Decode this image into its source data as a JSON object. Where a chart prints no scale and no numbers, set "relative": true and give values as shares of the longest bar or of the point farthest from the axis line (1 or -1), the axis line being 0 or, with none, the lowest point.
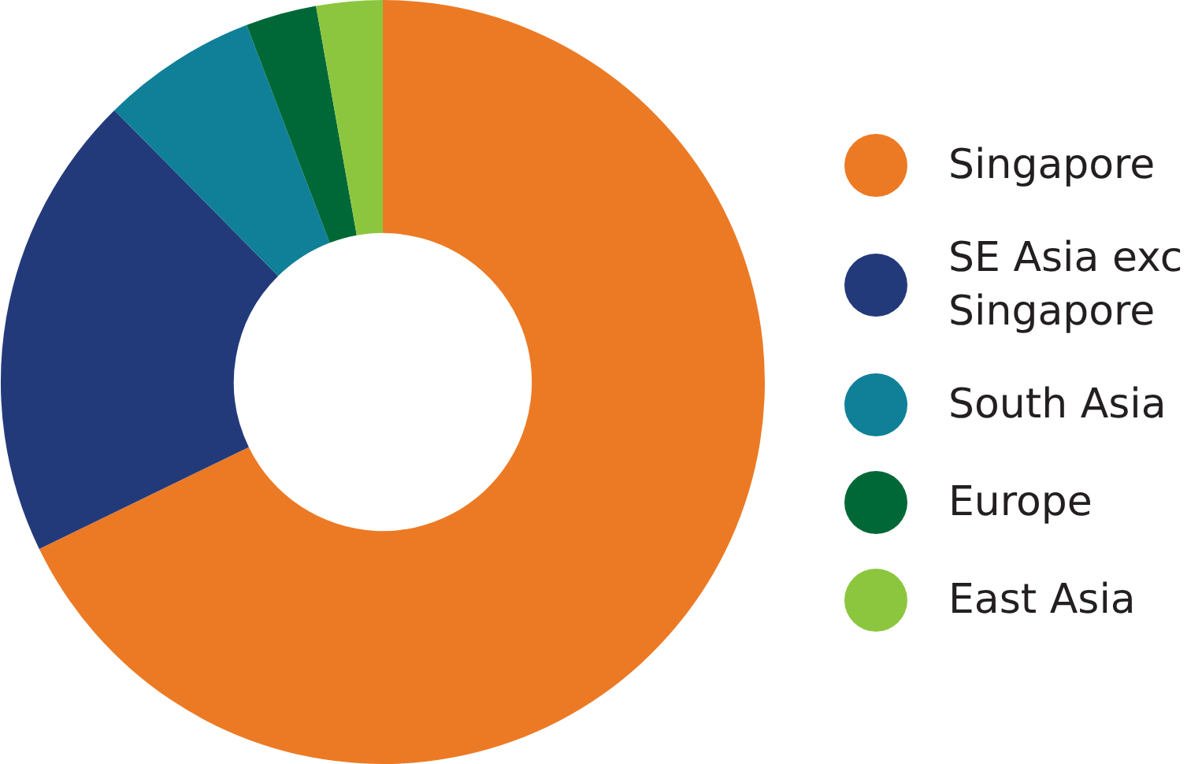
{
  "chart_data": {
    "type": "donut",
    "relative": true,
    "categories": [
      "Singapore",
      "SE Asia exc Singapore",
      "South Asia",
      "Europe",
      "East Asia"
    ],
    "values": [
      67.8,
      19.8,
      6.6,
      3.0,
      2.8
    ],
    "colors": [
      "#ec7a25",
      "#233a7a",
      "#0f8098",
      "#006837",
      "#8cc63f"
    ],
    "legend": "right"
  }
}
